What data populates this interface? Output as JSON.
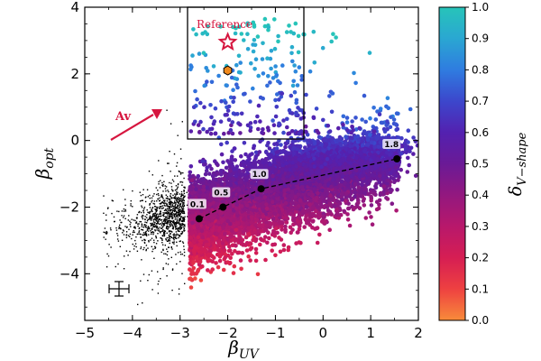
{
  "chart_data": {
    "type": "scatter",
    "title": "",
    "xlabel": "β",
    "xlabel_sub": "UV",
    "ylabel": "β",
    "ylabel_sub": "opt",
    "xlim": [
      -5,
      2
    ],
    "ylim": [
      -5.4,
      4
    ],
    "xticks": [
      -5,
      -4,
      -3,
      -2,
      -1,
      0,
      1,
      2
    ],
    "yticks": [
      -4,
      -2,
      0,
      2,
      4
    ],
    "colorbar": {
      "label": "δ",
      "label_sub": "V−shape",
      "range": [
        0.0,
        1.0
      ],
      "ticks": [
        "0.0",
        "0.1",
        "0.2",
        "0.3",
        "0.4",
        "0.5",
        "0.6",
        "0.7",
        "0.8",
        "0.9",
        "1.0"
      ],
      "colors": [
        "#f88b3a",
        "#ee4141",
        "#d61e53",
        "#b8186b",
        "#93187f",
        "#6a1a96",
        "#5321b0",
        "#3c47cc",
        "#2f7ce0",
        "#2aa7d2",
        "#27c4b9"
      ]
    },
    "reference_box": {
      "x": [
        -2.8,
        -0.4
      ],
      "y": [
        0.05,
        4
      ]
    },
    "reference": {
      "label": "Reference",
      "star": [
        -2.0,
        2.95
      ],
      "hexagon": [
        -2.0,
        2.1
      ]
    },
    "attenuation_curve": {
      "x": [
        -2.6,
        -2.1,
        -1.3,
        1.55
      ],
      "y": [
        -2.35,
        -2.0,
        -1.45,
        -0.55
      ],
      "labels": [
        "0.1",
        "0.5",
        "1.0",
        "1.8"
      ]
    },
    "av_arrow": {
      "label": "Av",
      "from": [
        -4.5,
        0.05
      ],
      "to": [
        -3.3,
        0.9
      ]
    },
    "error_bar": {
      "x": -4.3,
      "y": -4.5,
      "xerr": 0.22,
      "yerr": 0.3
    },
    "point_groups": [
      {
        "name": "black",
        "count": 1100
      },
      {
        "name": "colored",
        "count": 7800
      },
      {
        "name": "reference",
        "count": 260
      }
    ]
  }
}
